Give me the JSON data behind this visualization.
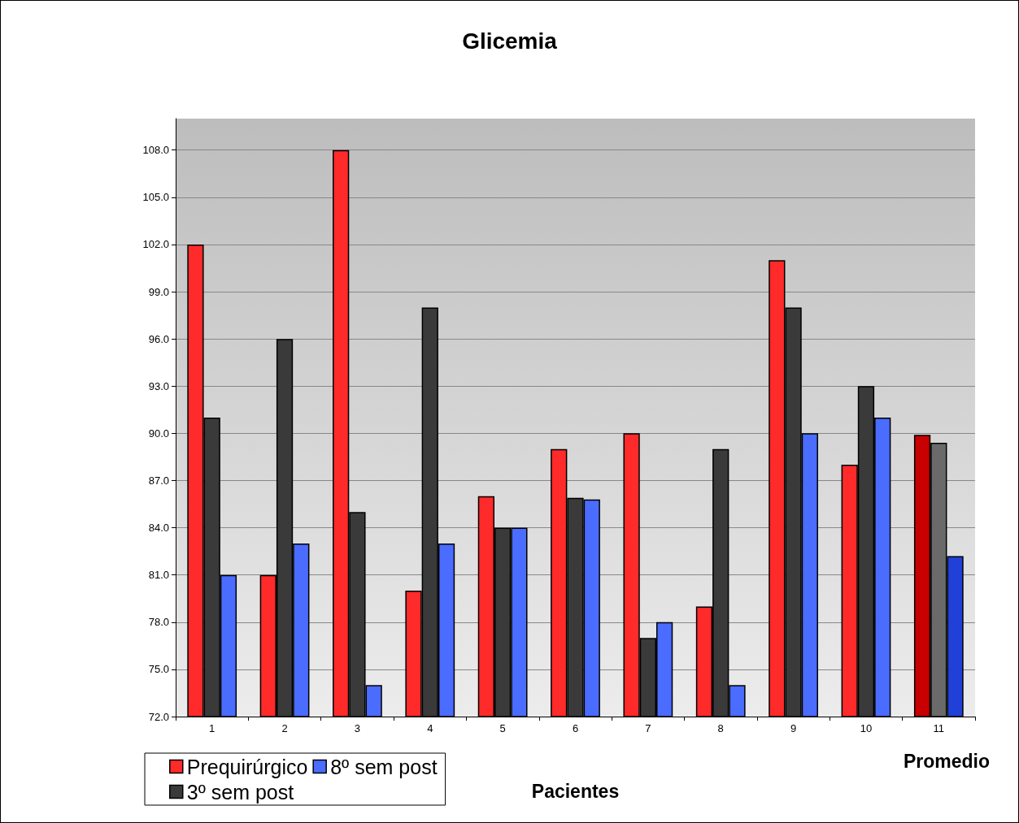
{
  "chart_data": {
    "type": "bar",
    "title": "Glicemia",
    "xlabel": "Pacientes",
    "categories": [
      "1",
      "2",
      "3",
      "4",
      "5",
      "6",
      "7",
      "8",
      "9",
      "10",
      "11"
    ],
    "series": [
      {
        "name": "Prequirúrgico",
        "color": "#ff2a2a",
        "colors": [
          "#ff2a2a",
          "#ff2a2a",
          "#ff2a2a",
          "#ff2a2a",
          "#ff2a2a",
          "#ff2a2a",
          "#ff2a2a",
          "#ff2a2a",
          "#ff2a2a",
          "#ff2a2a",
          "#c80000"
        ],
        "values": [
          102,
          81,
          108,
          80,
          86,
          89,
          90,
          79,
          101,
          88,
          89.9
        ]
      },
      {
        "name": "3º sem post",
        "color": "#3a3a3a",
        "colors": [
          "#3a3a3a",
          "#3a3a3a",
          "#3a3a3a",
          "#3a3a3a",
          "#3a3a3a",
          "#3a3a3a",
          "#3a3a3a",
          "#3a3a3a",
          "#3a3a3a",
          "#3a3a3a",
          "#6a6a6a"
        ],
        "values": [
          91,
          96,
          85,
          98,
          84,
          85.9,
          77,
          89,
          98,
          93,
          89.4
        ]
      },
      {
        "name": "8º sem post",
        "color": "#4a6cff",
        "colors": [
          "#4a6cff",
          "#4a6cff",
          "#4a6cff",
          "#4a6cff",
          "#4a6cff",
          "#4a6cff",
          "#4a6cff",
          "#4a6cff",
          "#4a6cff",
          "#4a6cff",
          "#2040d8"
        ],
        "values": [
          81,
          83,
          74,
          83,
          84,
          85.8,
          78,
          74,
          90,
          91,
          82.2
        ]
      }
    ],
    "ylim": [
      72,
      110
    ],
    "yticks": [
      {
        "value": 72,
        "label": "72.0"
      },
      {
        "value": 75,
        "label": "75.0"
      },
      {
        "value": 78,
        "label": "78.0"
      },
      {
        "value": 81,
        "label": "81.0"
      },
      {
        "value": 84,
        "label": "84.0"
      },
      {
        "value": 87,
        "label": "87.0"
      },
      {
        "value": 90,
        "label": "90.0"
      },
      {
        "value": 93,
        "label": "93.0"
      },
      {
        "value": 96,
        "label": "96.0"
      },
      {
        "value": 99,
        "label": "99.0"
      },
      {
        "value": 102,
        "label": "102.0"
      },
      {
        "value": 105,
        "label": "105.0"
      },
      {
        "value": 108,
        "label": "108.0"
      }
    ],
    "annotations": [
      "Promedio"
    ],
    "grid": "y",
    "legend": "bottom left"
  }
}
